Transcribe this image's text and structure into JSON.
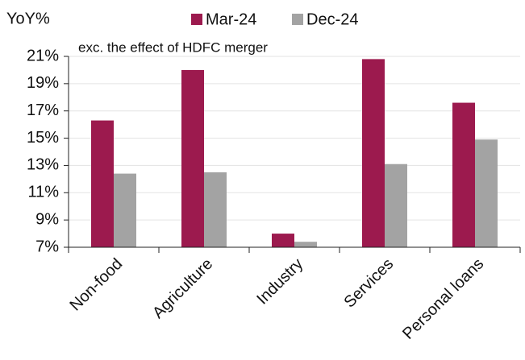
{
  "chart_data": {
    "type": "bar",
    "y_label": "YoY%",
    "annotation": "exc. the effect of HDFC merger",
    "categories": [
      "Non-food",
      "Agriculture",
      "Industry",
      "Services",
      "Personal loans"
    ],
    "series": [
      {
        "name": "Mar-24",
        "color": "#9c1a4e",
        "values": [
          16.3,
          20.0,
          8.0,
          20.8,
          17.6
        ]
      },
      {
        "name": "Dec-24",
        "color": "#a3a3a3",
        "values": [
          12.4,
          12.5,
          7.4,
          13.1,
          14.9
        ]
      }
    ],
    "ylim": [
      7,
      21
    ],
    "yticks": [
      {
        "value": 7,
        "label": "7%"
      },
      {
        "value": 9,
        "label": "9%"
      },
      {
        "value": 11,
        "label": "11%"
      },
      {
        "value": 13,
        "label": "13%"
      },
      {
        "value": 15,
        "label": "15%"
      },
      {
        "value": 17,
        "label": "17%"
      },
      {
        "value": 19,
        "label": "19%"
      },
      {
        "value": 21,
        "label": "21%"
      }
    ],
    "grid": true,
    "legend": "top"
  }
}
